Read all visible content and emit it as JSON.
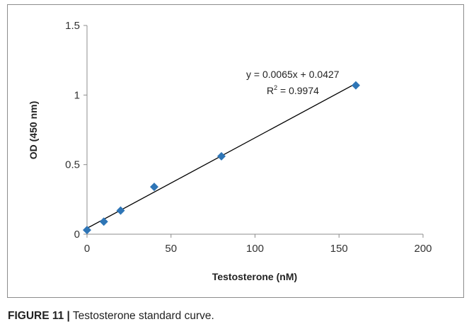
{
  "chart_data": {
    "type": "scatter",
    "xlabel": "Testosterone (nM)",
    "ylabel": "OD (450 nm)",
    "xlim": [
      0,
      200
    ],
    "ylim": [
      0,
      1.5
    ],
    "x_ticks": [
      "0",
      "50",
      "100",
      "150",
      "200"
    ],
    "y_ticks": [
      "0",
      "0.5",
      "1",
      "1.5"
    ],
    "grid": false,
    "legend": "none",
    "series": [
      {
        "x": [
          0,
          10,
          20,
          40,
          80,
          160
        ],
        "y": [
          0.03,
          0.09,
          0.17,
          0.34,
          0.56,
          1.07
        ],
        "marker": "diamond",
        "color": "#2e75b6"
      }
    ],
    "trendline": {
      "slope": 0.0065,
      "intercept": 0.0427,
      "x_range": [
        0,
        160
      ],
      "color": "#000000",
      "equation": "y = 0.0065x + 0.0427",
      "r_squared_label": "R",
      "r_squared_sup": "2",
      "r_squared_value": " = 0.9974"
    }
  },
  "caption": {
    "label": "FIGURE 11 |",
    "text": " Testosterone standard curve."
  }
}
